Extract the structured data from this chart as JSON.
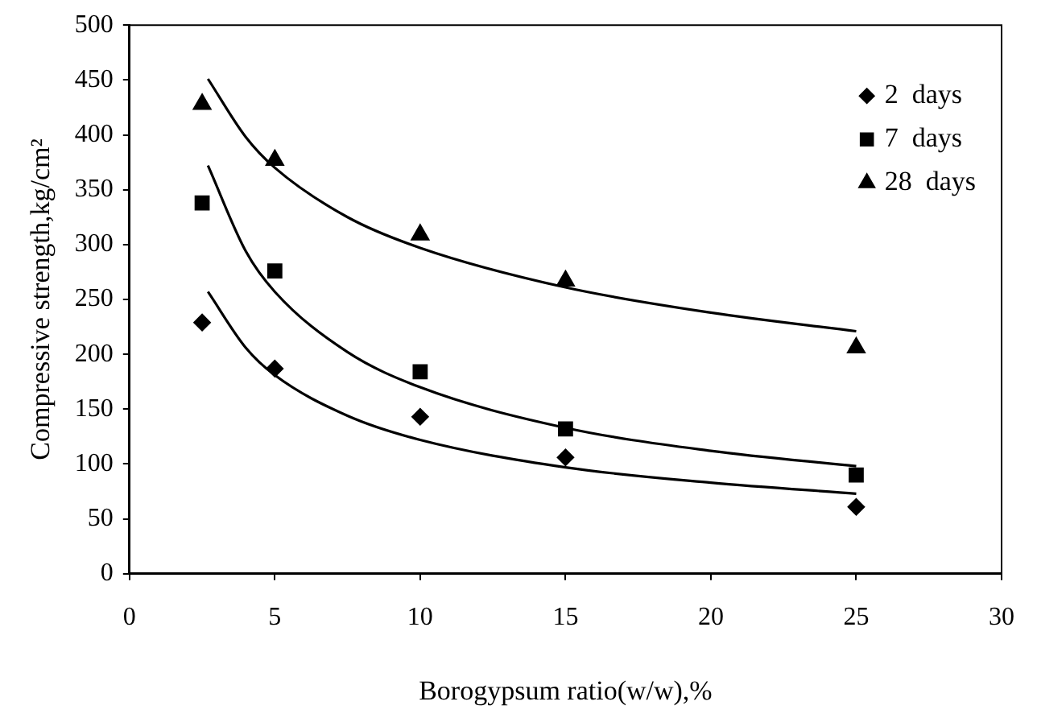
{
  "chart_data": {
    "type": "scatter",
    "xlabel": "Borogypsum ratio(w/w),%",
    "ylabel": "Compressive strength,kg/cm²",
    "xlim": [
      0,
      30
    ],
    "xticks": [
      0,
      5,
      10,
      15,
      20,
      25,
      30
    ],
    "ylim": [
      0,
      500
    ],
    "yticks": [
      0,
      50,
      100,
      150,
      200,
      250,
      300,
      350,
      400,
      450,
      500
    ],
    "grid": false,
    "legend": "top right",
    "series": [
      {
        "name": "2  days",
        "color": "#000000",
        "marker": "diamond",
        "x": [
          2.5,
          5,
          10,
          15,
          25
        ],
        "values": [
          229,
          187,
          143,
          106,
          61
        ]
      },
      {
        "name": "7  days",
        "color": "#000000",
        "marker": "square",
        "x": [
          2.5,
          5,
          10,
          15,
          25
        ],
        "values": [
          338,
          276,
          184,
          132,
          90
        ]
      },
      {
        "name": "28  days",
        "color": "#000000",
        "marker": "triangle",
        "x": [
          2.5,
          5,
          10,
          15,
          25
        ],
        "values": [
          428,
          377,
          309,
          267,
          206
        ]
      },
      {
        "type": "line",
        "color": "#000000",
        "marker": "none",
        "x": [
          2.7,
          4,
          5,
          7.5,
          10,
          15,
          20,
          25
        ],
        "values": [
          257,
          206,
          181,
          144,
          122,
          97,
          83,
          73
        ]
      },
      {
        "type": "line",
        "color": "#000000",
        "marker": "none",
        "x": [
          2.7,
          4,
          5,
          7.5,
          10,
          15,
          20,
          25
        ],
        "values": [
          372,
          294,
          257,
          202,
          170,
          133,
          112,
          98
        ]
      },
      {
        "type": "line",
        "color": "#000000",
        "marker": "none",
        "x": [
          2.7,
          4,
          5,
          7.5,
          10,
          15,
          20,
          25
        ],
        "values": [
          451,
          398,
          370,
          325,
          297,
          261,
          238,
          221
        ]
      }
    ]
  }
}
